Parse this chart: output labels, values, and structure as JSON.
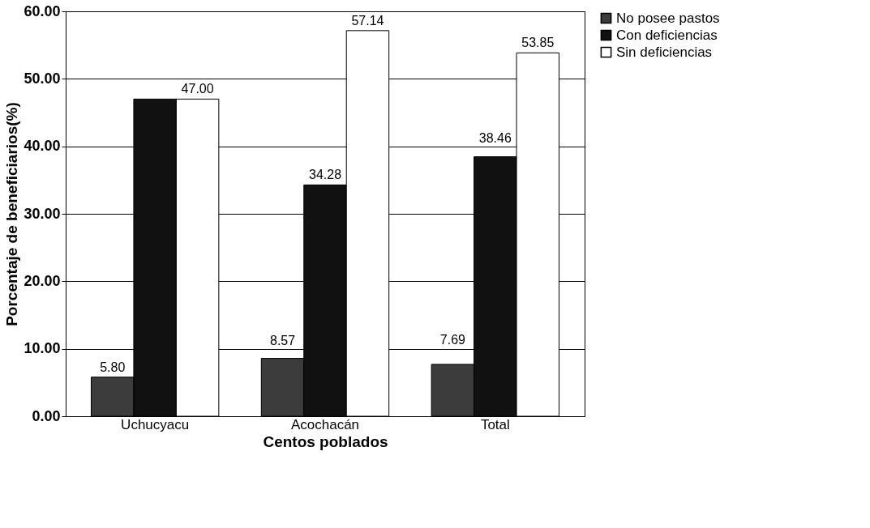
{
  "chart_data": {
    "type": "bar",
    "xlabel": "Centos poblados",
    "ylabel": "Porcentaje de beneficiarios(%)",
    "categories": [
      "Uchucyacu",
      "Acochacán",
      "Total"
    ],
    "series": [
      {
        "name": "No posee pastos",
        "color": "#3c3c3c",
        "values": [
          5.8,
          8.57,
          7.69
        ],
        "value_labels": [
          "5.80",
          "8.57",
          "7.69"
        ]
      },
      {
        "name": "Con deficiencias",
        "color": "#111111",
        "values": [
          47.0,
          34.28,
          38.46
        ],
        "value_labels": [
          null,
          "34.28",
          "38.46"
        ]
      },
      {
        "name": "Sin deficiencias",
        "color": "#ffffff",
        "values": [
          47.0,
          57.14,
          53.85
        ],
        "value_labels": [
          "47.00",
          "57.14",
          "53.85"
        ]
      }
    ],
    "ylim": [
      0,
      60
    ],
    "yticks": [
      {
        "value": 0,
        "label": "0.00"
      },
      {
        "value": 10,
        "label": "10.00"
      },
      {
        "value": 20,
        "label": "20.00"
      },
      {
        "value": 30,
        "label": "30.00"
      },
      {
        "value": 40,
        "label": "40.00"
      },
      {
        "value": 50,
        "label": "50.00"
      },
      {
        "value": 60,
        "label": "60.00"
      }
    ],
    "grid": "y",
    "legend": "right"
  }
}
